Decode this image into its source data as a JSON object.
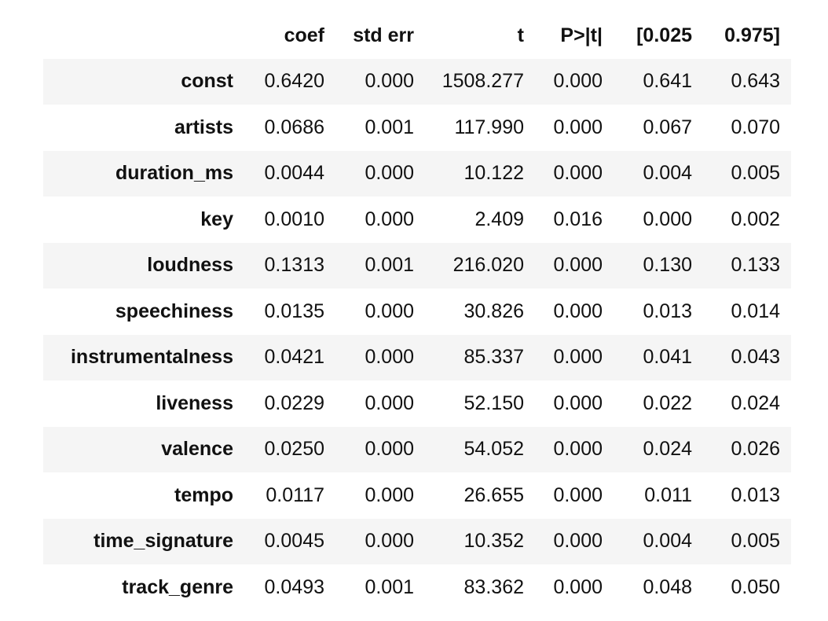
{
  "table": {
    "columns": [
      "",
      "coef",
      "std err",
      "t",
      "P>|t|",
      "[0.025",
      "0.975]"
    ],
    "rows": [
      {
        "label": "const",
        "values": [
          "0.6420",
          "0.000",
          "1508.277",
          "0.000",
          "0.641",
          "0.643"
        ]
      },
      {
        "label": "artists",
        "values": [
          "0.0686",
          "0.001",
          "117.990",
          "0.000",
          "0.067",
          "0.070"
        ]
      },
      {
        "label": "duration_ms",
        "values": [
          "0.0044",
          "0.000",
          "10.122",
          "0.000",
          "0.004",
          "0.005"
        ]
      },
      {
        "label": "key",
        "values": [
          "0.0010",
          "0.000",
          "2.409",
          "0.016",
          "0.000",
          "0.002"
        ]
      },
      {
        "label": "loudness",
        "values": [
          "0.1313",
          "0.001",
          "216.020",
          "0.000",
          "0.130",
          "0.133"
        ]
      },
      {
        "label": "speechiness",
        "values": [
          "0.0135",
          "0.000",
          "30.826",
          "0.000",
          "0.013",
          "0.014"
        ]
      },
      {
        "label": "instrumentalness",
        "values": [
          "0.0421",
          "0.000",
          "85.337",
          "0.000",
          "0.041",
          "0.043"
        ]
      },
      {
        "label": "liveness",
        "values": [
          "0.0229",
          "0.000",
          "52.150",
          "0.000",
          "0.022",
          "0.024"
        ]
      },
      {
        "label": "valence",
        "values": [
          "0.0250",
          "0.000",
          "54.052",
          "0.000",
          "0.024",
          "0.026"
        ]
      },
      {
        "label": "tempo",
        "values": [
          "0.0117",
          "0.000",
          "26.655",
          "0.000",
          "0.011",
          "0.013"
        ]
      },
      {
        "label": "time_signature",
        "values": [
          "0.0045",
          "0.000",
          "10.352",
          "0.000",
          "0.004",
          "0.005"
        ]
      },
      {
        "label": "track_genre",
        "values": [
          "0.0493",
          "0.001",
          "83.362",
          "0.000",
          "0.048",
          "0.050"
        ]
      }
    ]
  },
  "colors": {
    "stripe": "#f5f5f5",
    "background": "#ffffff",
    "text": "#111111"
  }
}
